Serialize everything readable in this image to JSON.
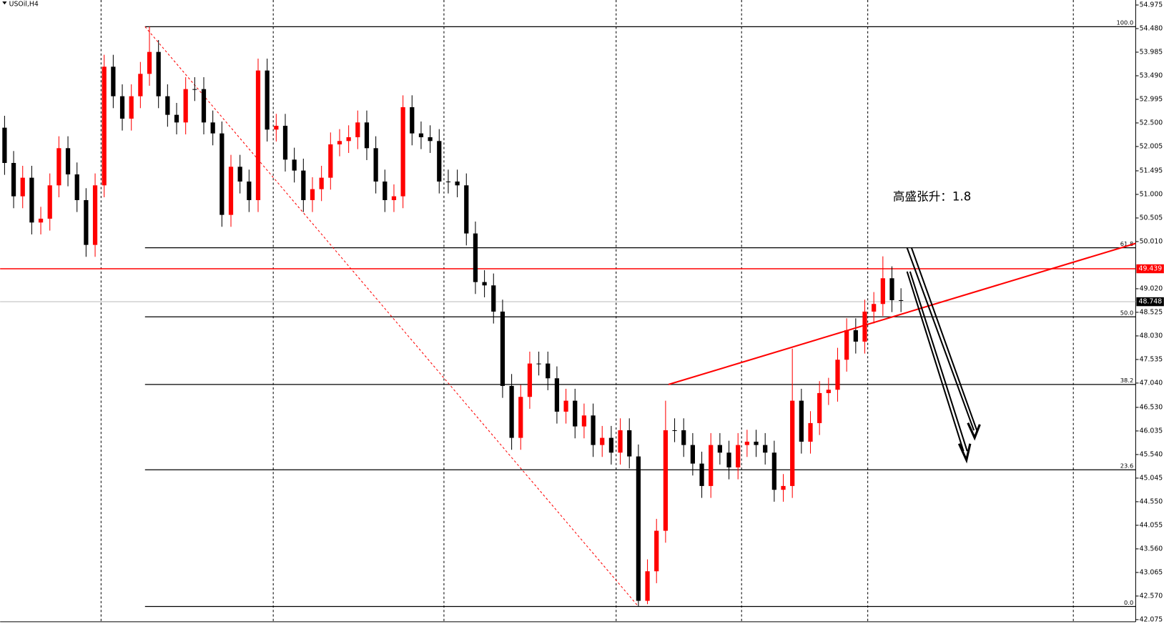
{
  "chart_data": {
    "type": "candlestick",
    "title": "USOil,H4",
    "annotation": "高盛张升：1.8",
    "ylim": [
      42.03,
      55.08
    ],
    "yticks": [
      54.975,
      {
        "value": 54.48,
        "label": "54.480"
      },
      53.985,
      {
        "value": 53.49,
        "label": "53.490"
      },
      52.995,
      {
        "value": 52.5,
        "label": "52.500"
      },
      52.005,
      51.495,
      {
        "value": 51,
        "label": "51.000"
      },
      50.505,
      {
        "value": 50.01,
        "label": "50.010"
      },
      {
        "value": 49.02,
        "label": "49.020"
      },
      48.525,
      {
        "value": 48.03,
        "label": "48.030"
      },
      47.535,
      {
        "value": 47.04,
        "label": "47.040"
      },
      {
        "value": 46.53,
        "label": "46.530"
      },
      46.035,
      {
        "value": 45.54,
        "label": "45.540"
      },
      45.045,
      {
        "value": 44.55,
        "label": "44.550"
      },
      44.055,
      {
        "value": 43.56,
        "label": "43.560"
      },
      43.065,
      {
        "value": 42.57,
        "label": "42.570"
      },
      42.075
    ],
    "up_color": "#ff0000",
    "down_color": "#000000",
    "open": [
      52.4,
      51.66,
      50.96,
      51.35,
      50.41,
      50.49,
      51.19,
      51.97,
      51.42,
      50.88,
      49.94,
      51.19,
      53.68,
      53.06,
      52.59,
      53.06,
      53.53,
      53.99,
      53.06,
      52.67,
      52.51,
      53.21,
      53.21,
      52.51,
      52.28,
      50.57,
      51.58,
      51.27,
      50.88,
      53.6,
      52.36,
      52.44,
      51.73,
      51.5,
      50.88,
      51.11,
      51.35,
      52.05,
      52.12,
      52.2,
      52.51,
      51.97,
      51.27,
      50.88,
      50.96,
      52.83,
      52.28,
      52.2,
      52.12,
      51.27,
      51.27,
      51.19,
      50.18,
      49.16,
      49.09,
      48.54,
      46.98,
      45.89,
      46.75,
      47.45,
      47.45,
      47.14,
      46.44,
      46.67,
      46.13,
      46.36,
      45.74,
      45.89,
      45.58,
      46.05,
      45.5,
      42.47,
      43.09,
      43.94,
      46.05,
      46.05,
      45.74,
      45.35,
      44.88,
      45.74,
      45.58,
      45.27,
      45.74,
      45.81,
      45.74,
      45.58,
      44.8,
      44.88,
      46.67,
      45.81,
      46.2,
      46.83,
      46.9,
      47.53,
      48.15,
      47.91,
      48.54,
      48.7,
      49.24,
      48.78
    ],
    "high": [
      52.65,
      51.91,
      51.6,
      51.6,
      50.74,
      51.44,
      52.22,
      52.22,
      51.67,
      51.13,
      51.44,
      53.93,
      53.93,
      53.31,
      53.31,
      53.78,
      54.52,
      54.24,
      53.31,
      52.92,
      53.46,
      53.46,
      53.46,
      52.76,
      52.53,
      51.83,
      51.83,
      51.52,
      53.85,
      53.85,
      52.69,
      52.69,
      51.98,
      51.75,
      51.36,
      51.6,
      52.3,
      52.37,
      52.45,
      52.76,
      52.76,
      52.22,
      51.52,
      51.21,
      53.08,
      53.08,
      52.53,
      52.45,
      52.37,
      51.52,
      51.52,
      51.44,
      50.43,
      49.41,
      49.34,
      48.79,
      47.23,
      47.0,
      47.7,
      47.7,
      47.7,
      47.39,
      46.92,
      46.92,
      46.61,
      46.61,
      46.14,
      46.14,
      46.3,
      46.3,
      45.75,
      43.34,
      44.19,
      46.67,
      46.3,
      46.3,
      45.99,
      45.6,
      45.99,
      45.99,
      45.83,
      45.99,
      46.06,
      46.06,
      45.99,
      45.83,
      45.13,
      47.76,
      46.92,
      46.45,
      47.08,
      47.15,
      47.78,
      48.4,
      48.4,
      48.79,
      48.95,
      49.7,
      49.49,
      49.03
    ],
    "low": [
      51.41,
      50.71,
      50.71,
      50.16,
      50.16,
      50.24,
      50.94,
      51.17,
      50.63,
      49.69,
      49.69,
      50.94,
      52.81,
      52.34,
      52.34,
      52.81,
      53.28,
      52.81,
      52.42,
      52.26,
      52.26,
      52.96,
      52.26,
      52.03,
      50.32,
      50.32,
      51.02,
      50.63,
      50.63,
      52.11,
      52.11,
      51.48,
      51.25,
      50.63,
      50.63,
      50.86,
      51.1,
      51.8,
      51.87,
      51.95,
      51.72,
      51.02,
      50.63,
      50.63,
      50.71,
      52.03,
      51.95,
      51.87,
      51.02,
      51.02,
      50.94,
      49.93,
      48.91,
      48.84,
      48.29,
      46.73,
      45.64,
      45.64,
      46.5,
      47.2,
      46.89,
      46.19,
      46.19,
      45.88,
      45.88,
      45.49,
      45.49,
      45.33,
      45.33,
      45.25,
      42.35,
      42.4,
      42.84,
      43.69,
      45.8,
      45.49,
      45.1,
      44.63,
      44.63,
      45.33,
      45.02,
      45.02,
      45.49,
      45.49,
      45.33,
      44.55,
      44.55,
      44.63,
      45.56,
      45.56,
      45.95,
      46.58,
      46.65,
      47.28,
      47.66,
      47.66,
      48.29,
      48.45,
      48.53,
      48.53
    ],
    "close": [
      51.66,
      50.96,
      51.35,
      50.41,
      50.49,
      51.19,
      51.97,
      51.42,
      50.88,
      49.94,
      51.19,
      53.68,
      53.06,
      52.59,
      53.06,
      53.53,
      53.99,
      53.06,
      52.67,
      52.51,
      53.21,
      53.21,
      52.51,
      52.28,
      50.57,
      51.58,
      51.27,
      50.88,
      53.6,
      52.36,
      52.44,
      51.73,
      51.5,
      50.88,
      51.11,
      51.35,
      52.05,
      52.12,
      52.2,
      52.51,
      51.97,
      51.27,
      50.88,
      50.96,
      52.83,
      52.28,
      52.2,
      52.12,
      51.27,
      51.27,
      51.19,
      50.18,
      49.16,
      49.09,
      48.54,
      46.98,
      45.89,
      46.75,
      47.45,
      47.45,
      47.14,
      46.44,
      46.67,
      46.13,
      46.36,
      45.74,
      45.89,
      45.58,
      46.05,
      45.5,
      42.47,
      43.09,
      43.94,
      46.05,
      46.05,
      45.74,
      45.35,
      44.88,
      45.74,
      45.58,
      45.27,
      45.74,
      45.81,
      45.74,
      45.58,
      44.8,
      44.88,
      46.67,
      45.81,
      46.2,
      46.83,
      46.9,
      47.53,
      48.15,
      47.91,
      48.54,
      48.7,
      49.24,
      48.78,
      48.78
    ],
    "fib_levels": [
      {
        "label": "100.0",
        "value": 54.52
      },
      {
        "label": "61.8",
        "value": 49.88
      },
      {
        "label": "50.0",
        "value": 48.43
      },
      {
        "label": "38.2",
        "value": 47.01
      },
      {
        "label": "23.6",
        "value": 45.22
      },
      {
        "label": "0.0",
        "value": 42.35
      }
    ],
    "fib_color": "#000000",
    "resistance": {
      "value": 49.439,
      "color": "#ff0000"
    },
    "current_price": {
      "value": 48.748,
      "color": "#c0c0c0"
    }
  }
}
